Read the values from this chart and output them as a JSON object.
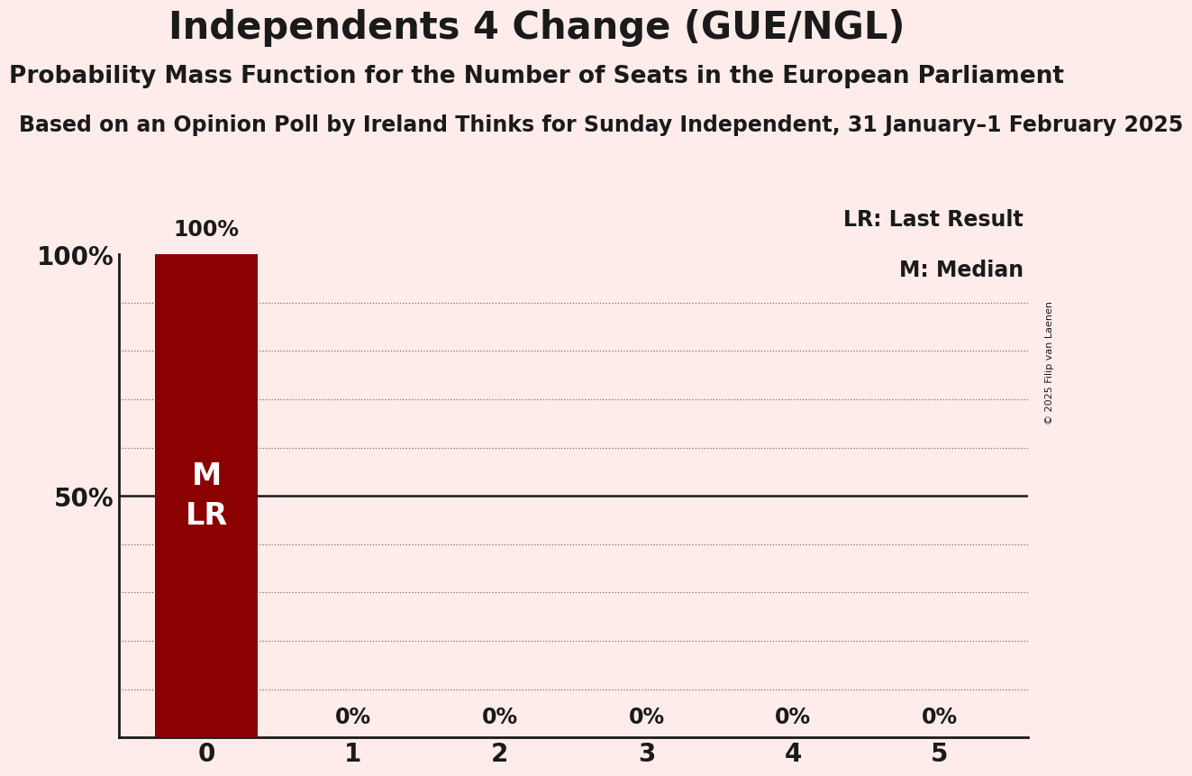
{
  "title": "Independents 4 Change (GUE/NGL)",
  "subtitle": "Probability Mass Function for the Number of Seats in the European Parliament",
  "poll_line": "Based on an Opinion Poll by Ireland Thinks for Sunday Independent, 31 January–1 February 2025",
  "copyright": "© 2025 Filip van Laenen",
  "seats": [
    0,
    1,
    2,
    3,
    4,
    5
  ],
  "probabilities": [
    100,
    0,
    0,
    0,
    0,
    0
  ],
  "bar_color": "#8B0000",
  "bar_label_color": "#FFFFFF",
  "background_color": "#FDECEA",
  "text_color": "#1a1a1a",
  "median": 0,
  "last_result": 0,
  "ylim": [
    0,
    100
  ],
  "title_fontsize": 30,
  "subtitle_fontsize": 19,
  "poll_fontsize": 17,
  "bar_annotation_fontsize": 17,
  "axis_tick_fontsize": 20,
  "legend_fontsize": 17,
  "inner_label_fontsize": 24
}
